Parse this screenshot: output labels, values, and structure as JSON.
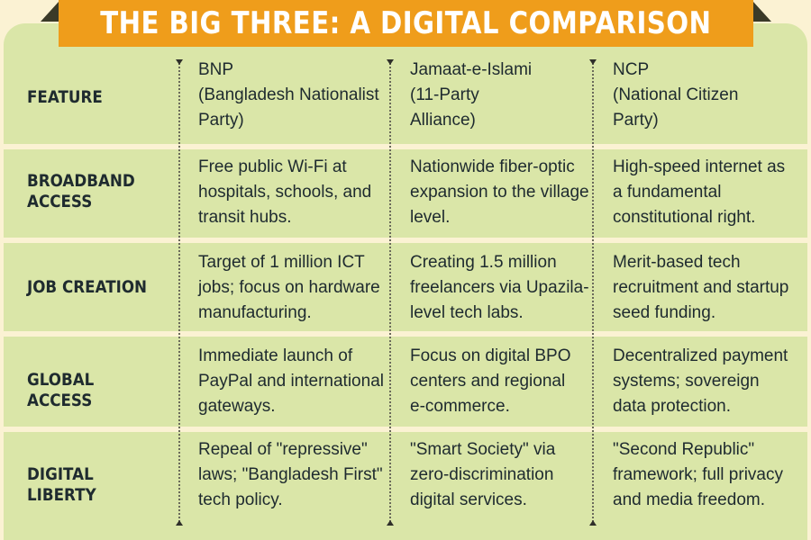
{
  "title": "THE BIG THREE: A DIGITAL COMPARISON",
  "header": {
    "label": "FEATURE",
    "columns": [
      [
        "BNP",
        "(Bangladesh Nationalist",
        "Party)"
      ],
      [
        "Jamaat-e-Islami",
        "(11-Party",
        "Alliance)"
      ],
      [
        "NCP",
        "(National Citizen",
        "Party)"
      ]
    ]
  },
  "rows": [
    {
      "feature": [
        "BROADBAND",
        "ACCESS"
      ],
      "cells": [
        [
          "Free public Wi-Fi at",
          "hospitals, schools, and",
          "transit hubs."
        ],
        [
          "Nationwide fiber-optic",
          "expansion to the village",
          "level."
        ],
        [
          "High-speed internet as",
          "a fundamental",
          "constitutional right."
        ]
      ]
    },
    {
      "feature": [
        "JOB CREATION"
      ],
      "cells": [
        [
          "Target of 1 million ICT",
          "jobs; focus on hardware",
          "manufacturing."
        ],
        [
          "Creating 1.5 million",
          "freelancers via Upazila-",
          "level tech labs."
        ],
        [
          "Merit-based tech",
          "recruitment and startup",
          "seed funding."
        ]
      ]
    },
    {
      "feature": [
        "GLOBAL ACCESS"
      ],
      "cells": [
        [
          "Immediate launch of",
          "PayPal and international",
          "gateways."
        ],
        [
          "Focus on digital BPO",
          "centers and regional",
          "e-commerce."
        ],
        [
          "Decentralized payment",
          "systems; sovereign",
          "data protection."
        ]
      ]
    },
    {
      "feature": [
        "DIGITAL LIBERTY"
      ],
      "cells": [
        [
          "Repeal of \"repressive\"",
          "laws; \"Bangladesh First\"",
          "tech policy."
        ],
        [
          "\"Smart Society\" via",
          "zero-discrimination",
          "digital services."
        ],
        [
          "\"Second Republic\"",
          "framework; full privacy",
          "and media freedom."
        ]
      ]
    }
  ],
  "colors": {
    "panel": "#dae6a8",
    "banner": "#ef9d1b",
    "background": "#fbf2d3",
    "text": "#1e2a2f"
  }
}
